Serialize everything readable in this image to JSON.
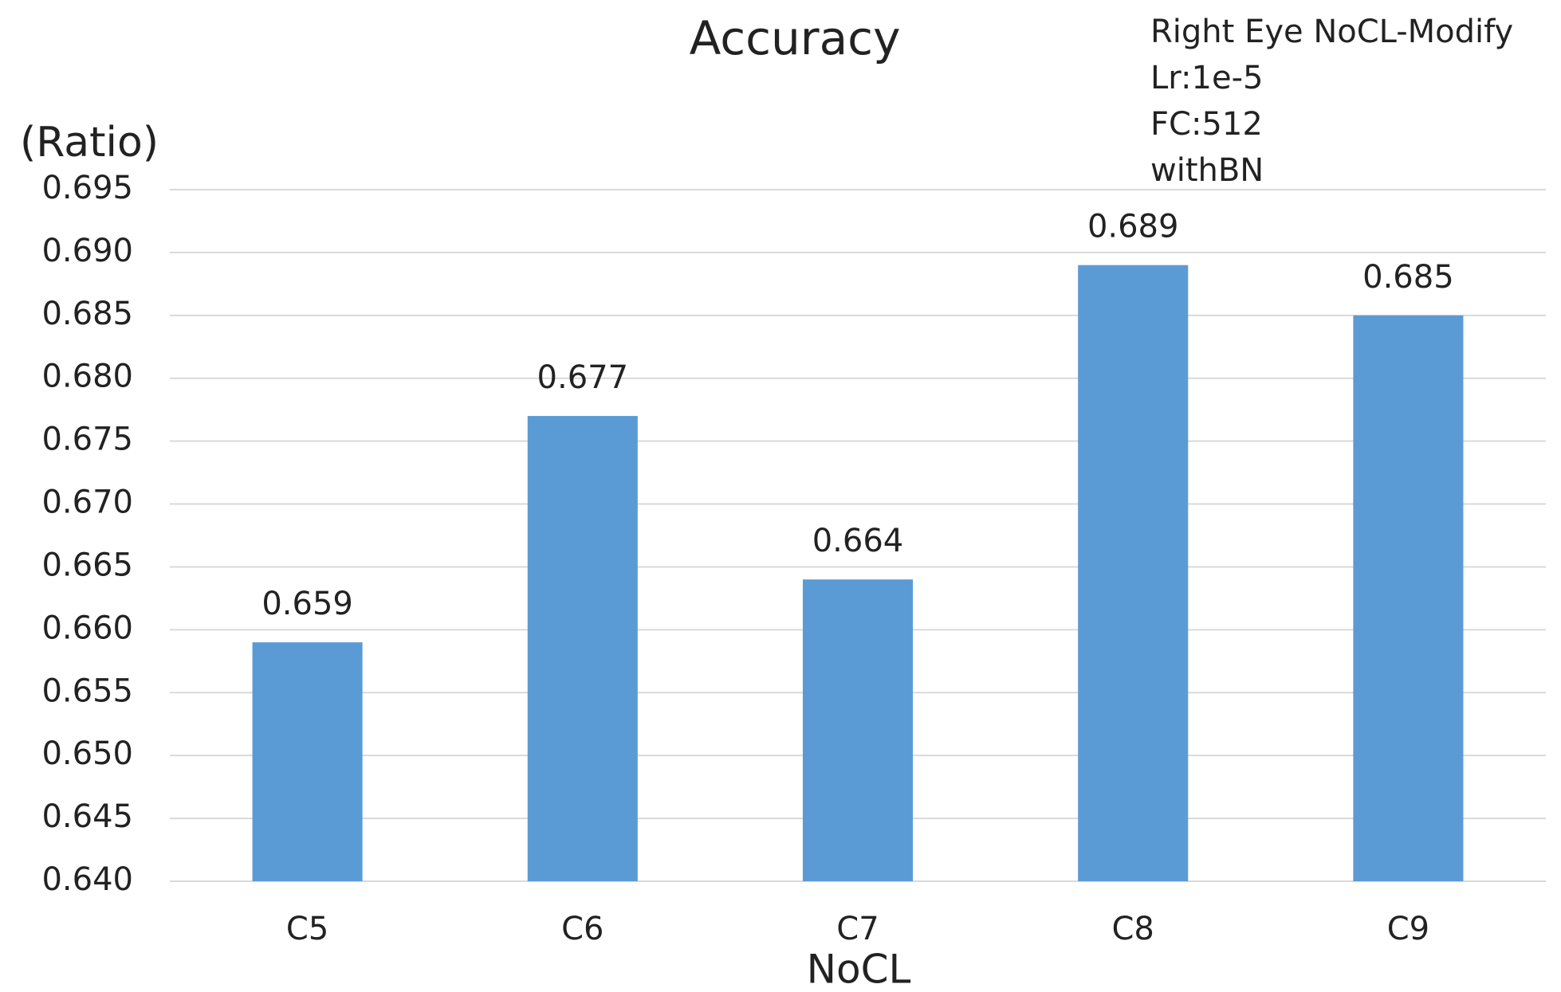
{
  "chart_data": {
    "type": "bar",
    "title": "Accuracy",
    "annotations": [
      "Right Eye  NoCL-Modify",
      "Lr:1e-5",
      "FC:512",
      "withBN"
    ],
    "y_label": "(Ratio)",
    "x_label": "NoCL",
    "categories": [
      "C5",
      "C6",
      "C7",
      "C8",
      "C9"
    ],
    "values": [
      0.659,
      0.677,
      0.664,
      0.689,
      0.685
    ],
    "color": "#5b9bd5",
    "ylim": [
      0.64,
      0.695
    ],
    "yticks": [
      {
        "value": 0.64,
        "label": "0.640"
      },
      0.645,
      {
        "value": 0.65,
        "label": "0.650"
      },
      0.655,
      {
        "value": 0.66,
        "label": "0.660"
      },
      0.665,
      {
        "value": 0.67,
        "label": "0.670"
      },
      0.675,
      {
        "value": 0.68,
        "label": "0.680"
      },
      0.685,
      {
        "value": 0.69,
        "label": "0.690"
      },
      0.695
    ],
    "grid": true
  }
}
